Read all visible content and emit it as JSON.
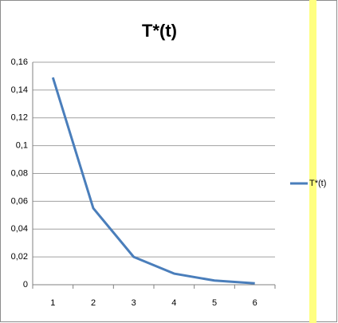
{
  "chart_data": {
    "type": "line",
    "title": "T*(t)",
    "categories": [
      "1",
      "2",
      "3",
      "4",
      "5",
      "6"
    ],
    "series": [
      {
        "name": "T*(t)",
        "color": "#4a7ebb",
        "values": [
          0.149,
          0.055,
          0.02,
          0.008,
          0.003,
          0.001
        ]
      }
    ],
    "ylim": [
      0,
      0.16
    ],
    "yticks": [
      0,
      {
        "value": 0.02,
        "label": "0,02"
      },
      {
        "value": 0.04,
        "label": "0,04"
      },
      {
        "value": 0.06,
        "label": "0,06"
      },
      {
        "value": 0.08,
        "label": "0,08"
      },
      {
        "value": 0.1,
        "label": "0,1"
      },
      {
        "value": 0.12,
        "label": "0,12"
      },
      {
        "value": 0.14,
        "label": "0,14"
      },
      {
        "value": 0.16,
        "label": "0,16"
      }
    ],
    "grid": true,
    "legend": "right"
  }
}
